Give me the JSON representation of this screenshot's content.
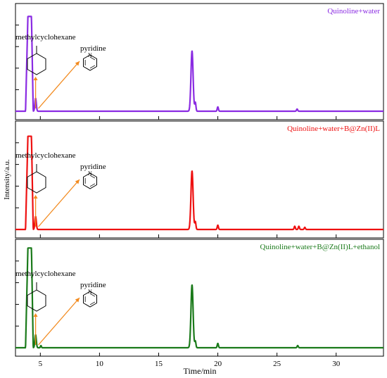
{
  "chart_data": {
    "type": "line",
    "xlabel": "Time/min",
    "ylabel": "Intensity/a.u.",
    "xlim": [
      2.9,
      34.0
    ],
    "xticks": [
      5,
      10,
      15,
      20,
      25,
      30
    ],
    "grid": false,
    "panels": [
      {
        "name": "Quinoline+water",
        "color": "#8a2be2",
        "ylim": [
          0,
          1.0
        ],
        "peaks": [
          {
            "start": 3.75,
            "top_start": 3.95,
            "top_end": 4.25,
            "end": 4.4,
            "height": 0.88
          },
          {
            "center": 4.6,
            "width": 0.06,
            "height": 0.12
          },
          {
            "center": 17.82,
            "width": 0.09,
            "height": 0.56
          },
          {
            "center": 18.1,
            "width": 0.05,
            "height": 0.08
          },
          {
            "center": 20.0,
            "width": 0.05,
            "height": 0.04
          },
          {
            "center": 26.7,
            "width": 0.05,
            "height": 0.02
          }
        ],
        "annotations": {
          "compound_a": "methylcyclohexane",
          "compound_b": "pyridine"
        }
      },
      {
        "name": "Quinoline+water+B@Zn(II)L",
        "color": "#ee1111",
        "ylim": [
          0,
          1.0
        ],
        "peaks": [
          {
            "start": 3.75,
            "top_start": 3.95,
            "top_end": 4.25,
            "end": 4.4,
            "height": 0.86
          },
          {
            "center": 4.6,
            "width": 0.06,
            "height": 0.12
          },
          {
            "center": 17.82,
            "width": 0.09,
            "height": 0.54
          },
          {
            "center": 18.1,
            "width": 0.05,
            "height": 0.07
          },
          {
            "center": 20.0,
            "width": 0.05,
            "height": 0.04
          },
          {
            "center": 26.5,
            "width": 0.05,
            "height": 0.03
          },
          {
            "center": 26.85,
            "width": 0.05,
            "height": 0.03
          },
          {
            "center": 27.35,
            "width": 0.05,
            "height": 0.02
          }
        ],
        "annotations": {
          "compound_a": "methylcyclohexane",
          "compound_b": "pyridine"
        }
      },
      {
        "name": "Quinoline+water+B@Zn(II)L+ethanol",
        "color": "#1a7a1a",
        "ylim": [
          0,
          1.0
        ],
        "peaks": [
          {
            "start": 3.75,
            "top_start": 3.95,
            "top_end": 4.25,
            "end": 4.4,
            "height": 0.92
          },
          {
            "center": 4.6,
            "width": 0.06,
            "height": 0.12
          },
          {
            "center": 5.05,
            "width": 0.04,
            "height": 0.02
          },
          {
            "center": 17.82,
            "width": 0.09,
            "height": 0.58
          },
          {
            "center": 18.1,
            "width": 0.05,
            "height": 0.06
          },
          {
            "center": 20.0,
            "width": 0.05,
            "height": 0.04
          },
          {
            "center": 26.75,
            "width": 0.05,
            "height": 0.02
          }
        ],
        "annotations": {
          "compound_a": "methylcyclohexane",
          "compound_b": "pyridine"
        }
      }
    ]
  }
}
